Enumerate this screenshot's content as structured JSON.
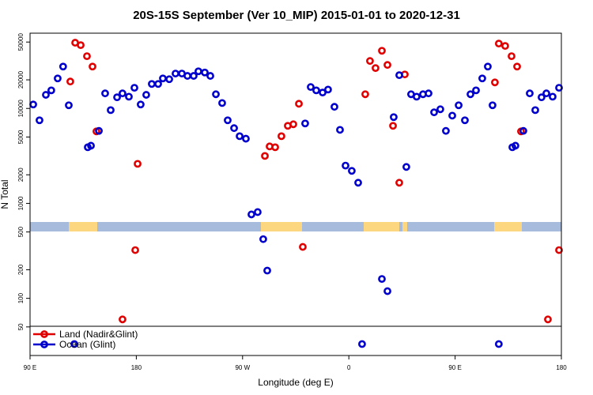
{
  "chart_data": {
    "type": "scatter",
    "title": "20S-15S September (Ver 10_MIP)   2015-01-01 to 2020-12-31",
    "x_label": "Longitude (deg E)",
    "y_label": "N Total",
    "ylog": true,
    "legend": "bottom-left",
    "xlim": [
      90,
      540
    ],
    "xticks": [
      {
        "value": 90,
        "label": "90 E"
      },
      180,
      {
        "value": 270,
        "label": "90 W"
      },
      {
        "value": 360,
        "label": "0"
      },
      {
        "value": 450,
        "label": "90 E"
      },
      {
        "value": 540,
        "label": "180"
      }
    ],
    "ylim": [
      25,
      62000
    ],
    "yticks": [
      50,
      100,
      200,
      500,
      1000,
      2000,
      5000,
      10000,
      20000,
      50000
    ],
    "series": [
      {
        "name": "Land (Nadir&Glint)",
        "color": "#e00000",
        "x": [
          124.1,
          128.2,
          132.9,
          138.2,
          142.9,
          146.2,
          168.3,
          179.1,
          181.1,
          288.9,
          292.9,
          297.6,
          302.9,
          308.3,
          313,
          317.7,
          321,
          373.9,
          377.9,
          382.6,
          388,
          392.7,
          397.4,
          402.7,
          407.4,
          483.7,
          487,
          492.4,
          497.8,
          502.5,
          505.8,
          528.6,
          538
        ],
        "values": [
          19200,
          49200,
          46400,
          35500,
          27600,
          5730,
          60,
          322,
          2610,
          3160,
          3980,
          3900,
          5100,
          6560,
          6810,
          11200,
          348,
          14100,
          31600,
          26600,
          40500,
          28700,
          6560,
          1650,
          22800,
          18800,
          48200,
          45500,
          35500,
          27600,
          5730,
          60,
          322
        ]
      },
      {
        "name": "Ocean (Glint)",
        "color": "#0000cc",
        "x": [
          92.7,
          98,
          103.4,
          108,
          113.4,
          118,
          122.8,
          127.5,
          138.9,
          141.6,
          148.3,
          153.6,
          158.3,
          163.7,
          168.3,
          173.7,
          178.4,
          183.7,
          188.4,
          193.1,
          198.5,
          202.5,
          207.9,
          213.2,
          218.6,
          223.3,
          228.6,
          232.6,
          238,
          242.7,
          247.4,
          252.7,
          257.4,
          262.8,
          267.5,
          272.8,
          277.5,
          282.8,
          287.5,
          290.9,
          323,
          327.7,
          332.4,
          337.8,
          342.4,
          347.8,
          352.5,
          357.2,
          362.5,
          367.9,
          371.2,
          388,
          392.7,
          398,
          402.7,
          408.7,
          412.7,
          417.4,
          422.8,
          427.5,
          432.2,
          437.5,
          442.2,
          447.6,
          453,
          458.3,
          463,
          467.7,
          473,
          477.7,
          481.7,
          487,
          498.5,
          501.1,
          507.8,
          513.2,
          517.9,
          523.2,
          527.3,
          532.6,
          538
        ],
        "values": [
          11000,
          7500,
          13900,
          15500,
          20700,
          27600,
          10800,
          33,
          3900,
          4050,
          5800,
          14400,
          9600,
          13100,
          14400,
          13300,
          16500,
          11000,
          13900,
          18100,
          18100,
          20700,
          20300,
          23300,
          23300,
          22000,
          22000,
          24600,
          23900,
          22000,
          14100,
          11400,
          7500,
          6200,
          5100,
          4800,
          765,
          810,
          420,
          196,
          6950,
          16800,
          15500,
          14700,
          15800,
          10400,
          5950,
          2500,
          2200,
          1650,
          33,
          160,
          119,
          8100,
          22400,
          2420,
          14100,
          13300,
          14100,
          14400,
          9100,
          9800,
          5800,
          8400,
          10800,
          7500,
          14100,
          15500,
          20700,
          27600,
          10800,
          33,
          3900,
          4050,
          5800,
          14400,
          9600,
          13100,
          14400,
          13300,
          16500
        ]
      }
    ]
  }
}
